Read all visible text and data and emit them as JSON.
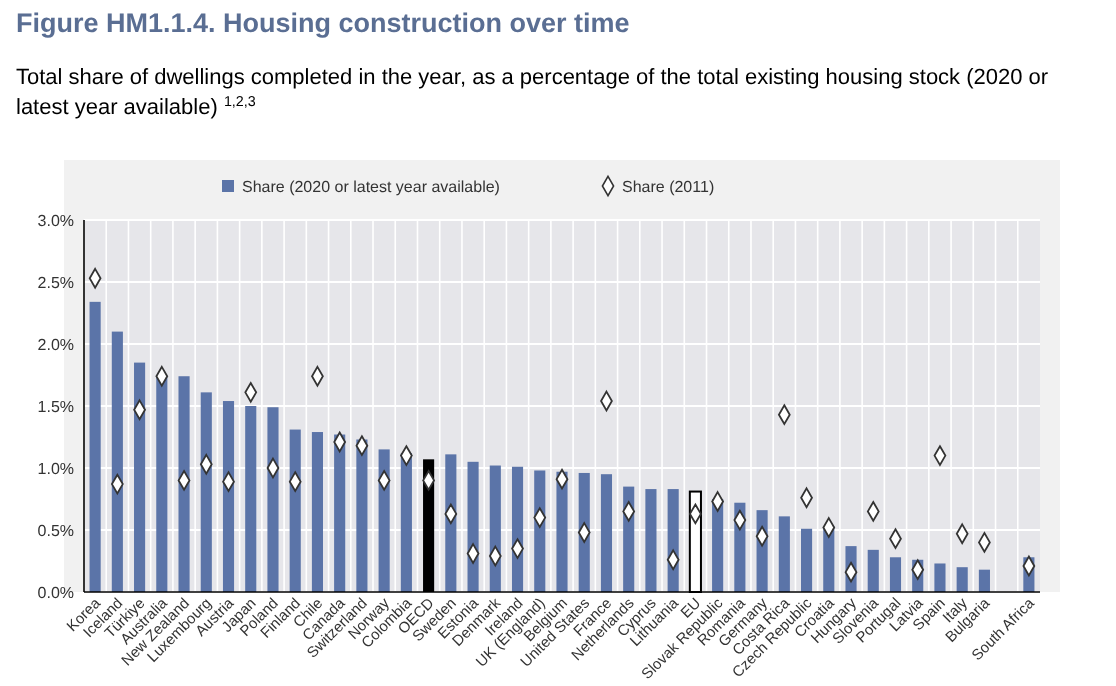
{
  "chart_data": {
    "type": "bar",
    "title": "Figure HM1.1.4. Housing construction over time",
    "subtitle": "Total share of dwellings completed in the year, as a percentage of the total existing housing stock (2020 or latest year available) $^{1,2,3}$",
    "categories": [
      "Korea",
      "Iceland",
      "Türkiye",
      "Australia",
      "New Zealand",
      "Luxembourg",
      "Austria",
      "Japan",
      "Poland",
      "Finland",
      "Chile",
      "Canada",
      "Switzerland",
      "Norway",
      "Colombia",
      "OECD",
      "Sweden",
      "Estonia",
      "Denmark",
      "Ireland",
      "UK (England)",
      "Belgium",
      "United States",
      "France",
      "Netherlands",
      "Cyprus",
      "Lithuania",
      "EU",
      "Slovak Republic",
      "Romania",
      "Germany",
      "Costa Rica",
      "Czech Republic",
      "Croatia",
      "Hungary",
      "Slovenia",
      "Portugal",
      "Latvia",
      "Spain",
      "Italy",
      "Bulgaria",
      null,
      "South Africa"
    ],
    "series": [
      {
        "name": "Share (2020 or latest year available)",
        "color": "#5b74a8",
        "colors": [
          "#5b74a8",
          "#5b74a8",
          "#5b74a8",
          "#5b74a8",
          "#5b74a8",
          "#5b74a8",
          "#5b74a8",
          "#5b74a8",
          "#5b74a8",
          "#5b74a8",
          "#5b74a8",
          "#5b74a8",
          "#5b74a8",
          "#5b74a8",
          "#5b74a8",
          "#000000",
          "#5b74a8",
          "#5b74a8",
          "#5b74a8",
          "#5b74a8",
          "#5b74a8",
          "#5b74a8",
          "#5b74a8",
          "#5b74a8",
          "#5b74a8",
          "#5b74a8",
          "#5b74a8",
          "#ffffff",
          "#5b74a8",
          "#5b74a8",
          "#5b74a8",
          "#5b74a8",
          "#5b74a8",
          "#5b74a8",
          "#5b74a8",
          "#5b74a8",
          "#5b74a8",
          "#5b74a8",
          "#5b74a8",
          "#5b74a8",
          "#5b74a8",
          null,
          "#5b74a8"
        ],
        "values": [
          2.34,
          2.1,
          1.85,
          1.74,
          1.74,
          1.61,
          1.54,
          1.5,
          1.49,
          1.31,
          1.29,
          1.27,
          1.23,
          1.15,
          1.12,
          1.07,
          1.11,
          1.05,
          1.02,
          1.01,
          0.98,
          0.97,
          0.96,
          0.95,
          0.85,
          0.83,
          0.83,
          0.81,
          0.75,
          0.72,
          0.66,
          0.61,
          0.51,
          0.53,
          0.37,
          0.34,
          0.28,
          0.26,
          0.23,
          0.2,
          0.18,
          null,
          0.28
        ]
      },
      {
        "name": "Share (2011)",
        "type": "scatter",
        "marker": "diamond",
        "color": "#ffffff",
        "values": [
          2.53,
          0.87,
          1.47,
          1.74,
          0.9,
          1.03,
          0.89,
          1.61,
          1.0,
          0.89,
          1.74,
          1.21,
          1.18,
          0.9,
          1.1,
          0.9,
          0.63,
          0.31,
          0.29,
          0.35,
          0.6,
          0.91,
          0.48,
          1.54,
          0.65,
          null,
          0.26,
          0.63,
          0.73,
          0.58,
          0.45,
          1.43,
          0.76,
          0.52,
          0.16,
          0.65,
          0.43,
          0.18,
          1.1,
          0.47,
          0.4,
          null,
          0.21
        ]
      }
    ],
    "ylim": [
      0,
      3
    ],
    "yticks": [
      {
        "value": 0,
        "label": "0.0%"
      },
      {
        "value": 0.5,
        "label": "0.5%"
      },
      {
        "value": 1,
        "label": "1.0%"
      },
      {
        "value": 1.5,
        "label": "1.5%"
      },
      {
        "value": 2,
        "label": "2.0%"
      },
      {
        "value": 2.5,
        "label": "2.5%"
      },
      {
        "value": 3,
        "label": "3.0%"
      }
    ],
    "grid": true,
    "legend": "top"
  }
}
